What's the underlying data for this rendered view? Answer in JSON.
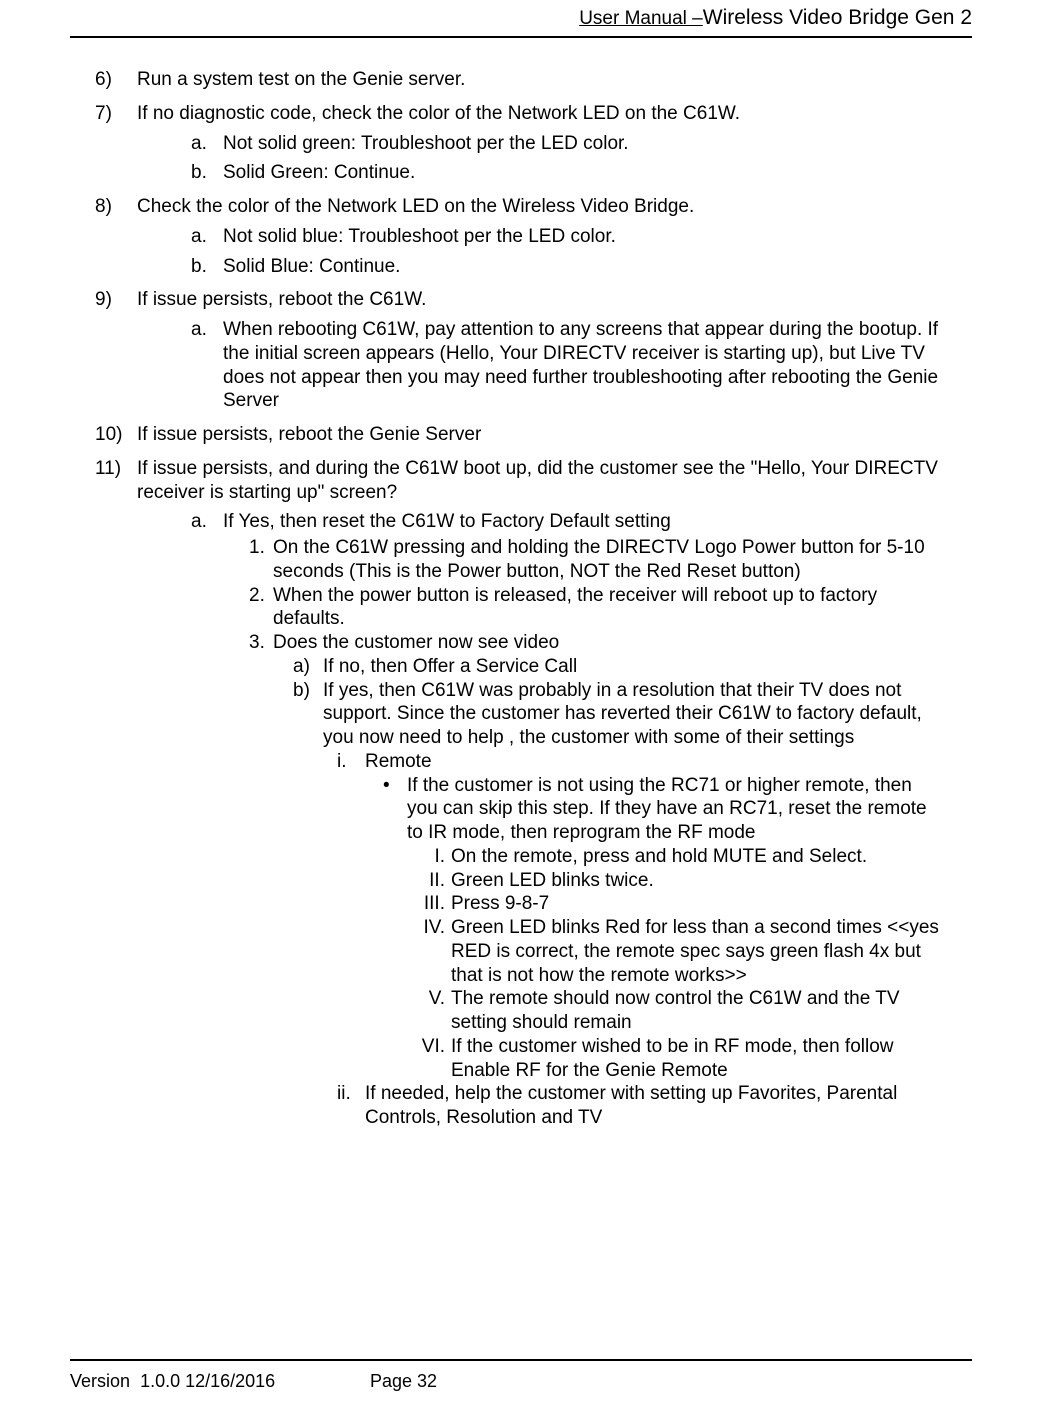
{
  "header": {
    "prefix": "User Manual –",
    "suffix": "Wireless Video Bridge Gen 2"
  },
  "footer": {
    "version_label": "Version",
    "version": "1.0.0 12/16/2016",
    "page_label": "Page 32"
  },
  "colors": {
    "text": "#000000",
    "bg": "#ffffff",
    "rule": "#000000"
  },
  "s6": "Run a system test on the Genie server.",
  "s7": "If no diagnostic code, check the color of the Network LED on the C61W.",
  "s7a": "Not solid green: Troubleshoot per the LED color.",
  "s7b": "Solid Green: Continue.",
  "s8": "Check the color of the Network LED on the Wireless Video Bridge.",
  "s8a": "Not solid blue: Troubleshoot per the LED color.",
  "s8b": "Solid Blue: Continue.",
  "s9": "If issue persists, reboot the C61W.",
  "s9a": "When rebooting C61W, pay attention to any screens that appear during the bootup. If the initial screen appears (Hello, Your DIRECTV receiver is starting up),  but Live TV does not appear then you may need further troubleshooting after rebooting the Genie Server",
  "s10": "If issue persists, reboot the Genie Server",
  "s11": "If issue persists, and during the C61W boot up, did the customer see the  \"Hello, Your DIRECTV receiver is starting up\" screen?",
  "s11a": "If Yes, then reset the C61W to Factory Default setting",
  "n1": "On the C61W pressing and holding the DIRECTV Logo Power button for 5-10 seconds (This is the Power button, NOT the Red Reset button)",
  "n2": "When the power button is released, the receiver will reboot up to factory defaults.",
  "n3": "Does the customer now see video",
  "pa": "If no, then Offer  a Service Call",
  "pb": "If yes, then C61W was probably in a resolution that their TV does not support. Since the customer has reverted their C61W to factory default, you now need to help , the customer with some of their settings",
  "ri": "Remote",
  "bl": "If the customer is not using the RC71 or higher remote, then you can skip this step. If they have an RC71, reset the remote to IR mode, then reprogram the RF mode",
  "RI": "On the remote, press and hold MUTE and Select.",
  "RII": "Green LED blinks twice.",
  "RIII": "Press 9-8-7",
  "RIV": "Green LED blinks Red for less than a second times <<yes RED is correct, the remote spec says green flash 4x but that is not how the remote works>>",
  "RV": "The remote should now control the C61W and the TV setting should remain",
  "RVI": "If the customer wished to be in RF mode, then follow Enable RF for the Genie Remote",
  "rii": "If needed, help the customer with setting up Favorites, Parental Controls, Resolution and TV"
}
